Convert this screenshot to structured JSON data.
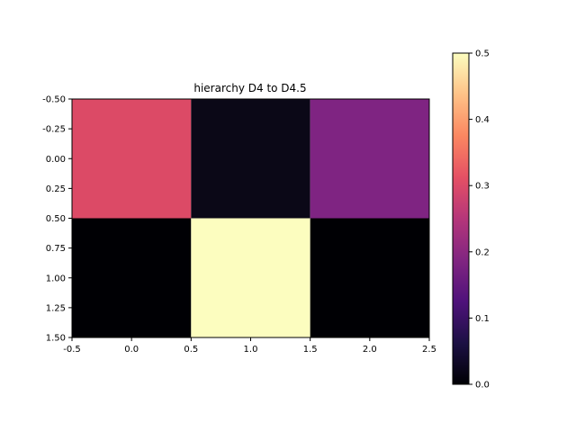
{
  "chart_data": {
    "type": "heatmap",
    "title": "hierarchy D4 to D4.5",
    "xlabel": "",
    "ylabel": "",
    "colormap": "magma",
    "rows": 2,
    "cols": 3,
    "values": [
      [
        0.29,
        0.01,
        0.19
      ],
      [
        0.0,
        0.5,
        0.0
      ]
    ],
    "cell_colors": [
      [
        "#dc4a66",
        "#0b0817",
        "#7f2482"
      ],
      [
        "#000004",
        "#fcfdbf",
        "#000004"
      ]
    ],
    "xlim": [
      -0.5,
      2.5
    ],
    "ylim": [
      1.5,
      -0.5
    ],
    "x_ticks": [
      "-0.5",
      "0.0",
      "0.5",
      "1.0",
      "1.5",
      "2.0",
      "2.5"
    ],
    "x_tick_values": [
      -0.5,
      0.0,
      0.5,
      1.0,
      1.5,
      2.0,
      2.5
    ],
    "y_ticks": [
      "-0.50",
      "-0.25",
      "0.00",
      "0.25",
      "0.50",
      "0.75",
      "1.00",
      "1.25",
      "1.50"
    ],
    "y_tick_values": [
      -0.5,
      -0.25,
      0.0,
      0.25,
      0.5,
      0.75,
      1.0,
      1.25,
      1.5
    ],
    "colorbar": {
      "range": [
        0.0,
        0.5
      ],
      "ticks": [
        "0.0",
        "0.1",
        "0.2",
        "0.3",
        "0.4",
        "0.5"
      ],
      "tick_values": [
        0.0,
        0.1,
        0.2,
        0.3,
        0.4,
        0.5
      ]
    }
  }
}
